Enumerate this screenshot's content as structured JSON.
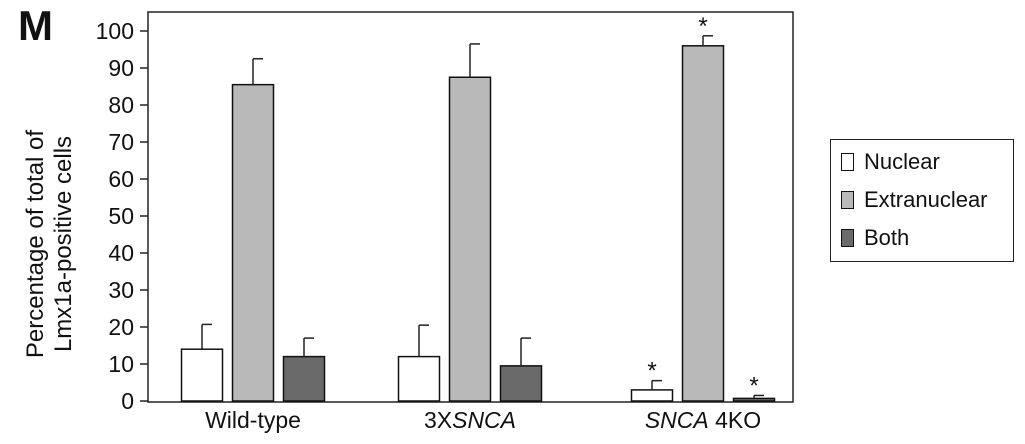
{
  "panel_letter": "M",
  "chart_data": {
    "type": "bar",
    "title": "",
    "ylabel_lines": [
      "Percentage of total of",
      "Lmx1a-positive cells"
    ],
    "xlabel": "",
    "ylim": [
      0,
      100
    ],
    "yticks": [
      0,
      10,
      20,
      30,
      40,
      50,
      60,
      70,
      80,
      90,
      100
    ],
    "categories": [
      {
        "pre": "Wild-type",
        "italic": "",
        "post": ""
      },
      {
        "pre": "3X",
        "italic": "SNCA",
        "post": ""
      },
      {
        "pre": "",
        "italic": "SNCA",
        "post": " 4KO"
      }
    ],
    "series": [
      {
        "name": "Nuclear",
        "color": "#ffffff",
        "values": [
          14,
          12,
          3
        ],
        "errors": [
          6.7,
          8.5,
          2.5
        ],
        "significant": [
          false,
          false,
          true
        ]
      },
      {
        "name": "Extranuclear",
        "color": "#b9b9b9",
        "values": [
          85.5,
          87.5,
          96
        ],
        "errors": [
          7,
          9,
          2.7
        ],
        "significant": [
          false,
          false,
          true
        ]
      },
      {
        "name": "Both",
        "color": "#6a6a6a",
        "values": [
          12,
          9.5,
          0.7
        ],
        "errors": [
          5,
          7.5,
          0.8
        ],
        "significant": [
          false,
          false,
          true
        ]
      }
    ],
    "significance_marker": "*",
    "legend_position": "right",
    "grid": false
  }
}
